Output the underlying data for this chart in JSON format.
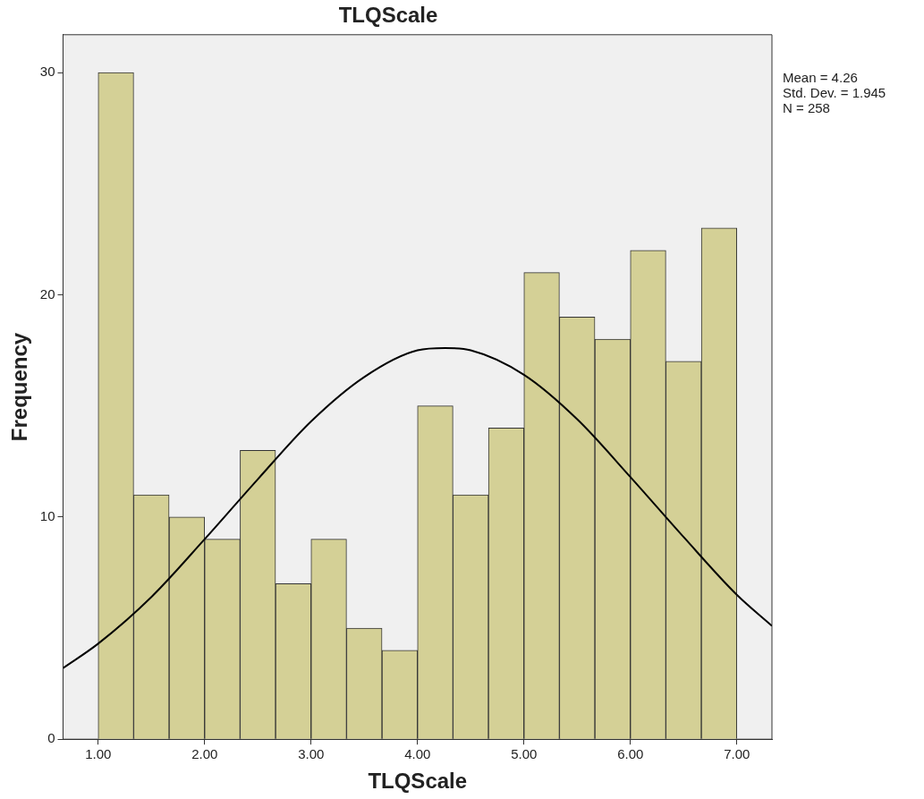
{
  "chart_data": {
    "type": "histogram",
    "title": "TLQScale",
    "xlabel": "TLQScale",
    "ylabel": "Frequency",
    "bins": [
      1,
      1.3333,
      1.6667,
      2,
      2.3333,
      2.6667,
      3,
      3.3333,
      3.6667,
      4,
      4.3333,
      4.6667,
      5,
      5.3333,
      5.6667,
      6,
      6.3333,
      6.6667,
      7
    ],
    "values": [
      30,
      11,
      10,
      9,
      13,
      7,
      9,
      5,
      4,
      15,
      11,
      14,
      21,
      19,
      18,
      22,
      17,
      23
    ],
    "color": "#d4d096",
    "series": [
      {
        "type": "line",
        "color": "#000000",
        "x": [
          0.67,
          1,
          1.5,
          2,
          2.5,
          3,
          3.5,
          4,
          4.26,
          4.5,
          5,
          5.5,
          6,
          6.5,
          7,
          7.33
        ],
        "values": [
          3.2,
          4.3,
          6.4,
          9.0,
          11.7,
          14.3,
          16.3,
          17.5,
          17.6,
          17.5,
          16.4,
          14.4,
          11.8,
          9.1,
          6.5,
          5.1
        ]
      }
    ],
    "xlim": [
      0.67,
      7.33
    ],
    "ylim": [
      0,
      31.7
    ],
    "xticks": [
      {
        "value": 1,
        "label": "1.00"
      },
      {
        "value": 2,
        "label": "2.00"
      },
      {
        "value": 3,
        "label": "3.00"
      },
      {
        "value": 4,
        "label": "4.00"
      },
      {
        "value": 5,
        "label": "5.00"
      },
      {
        "value": 6,
        "label": "6.00"
      },
      {
        "value": 7,
        "label": "7.00"
      }
    ],
    "yticks": [
      0,
      10,
      20,
      30
    ],
    "grid": false,
    "legend": false,
    "marker": "none",
    "line_style": "solid",
    "annotations": [
      "Mean = 4.26",
      "Std. Dev. = 1.945",
      "N = 258"
    ]
  }
}
